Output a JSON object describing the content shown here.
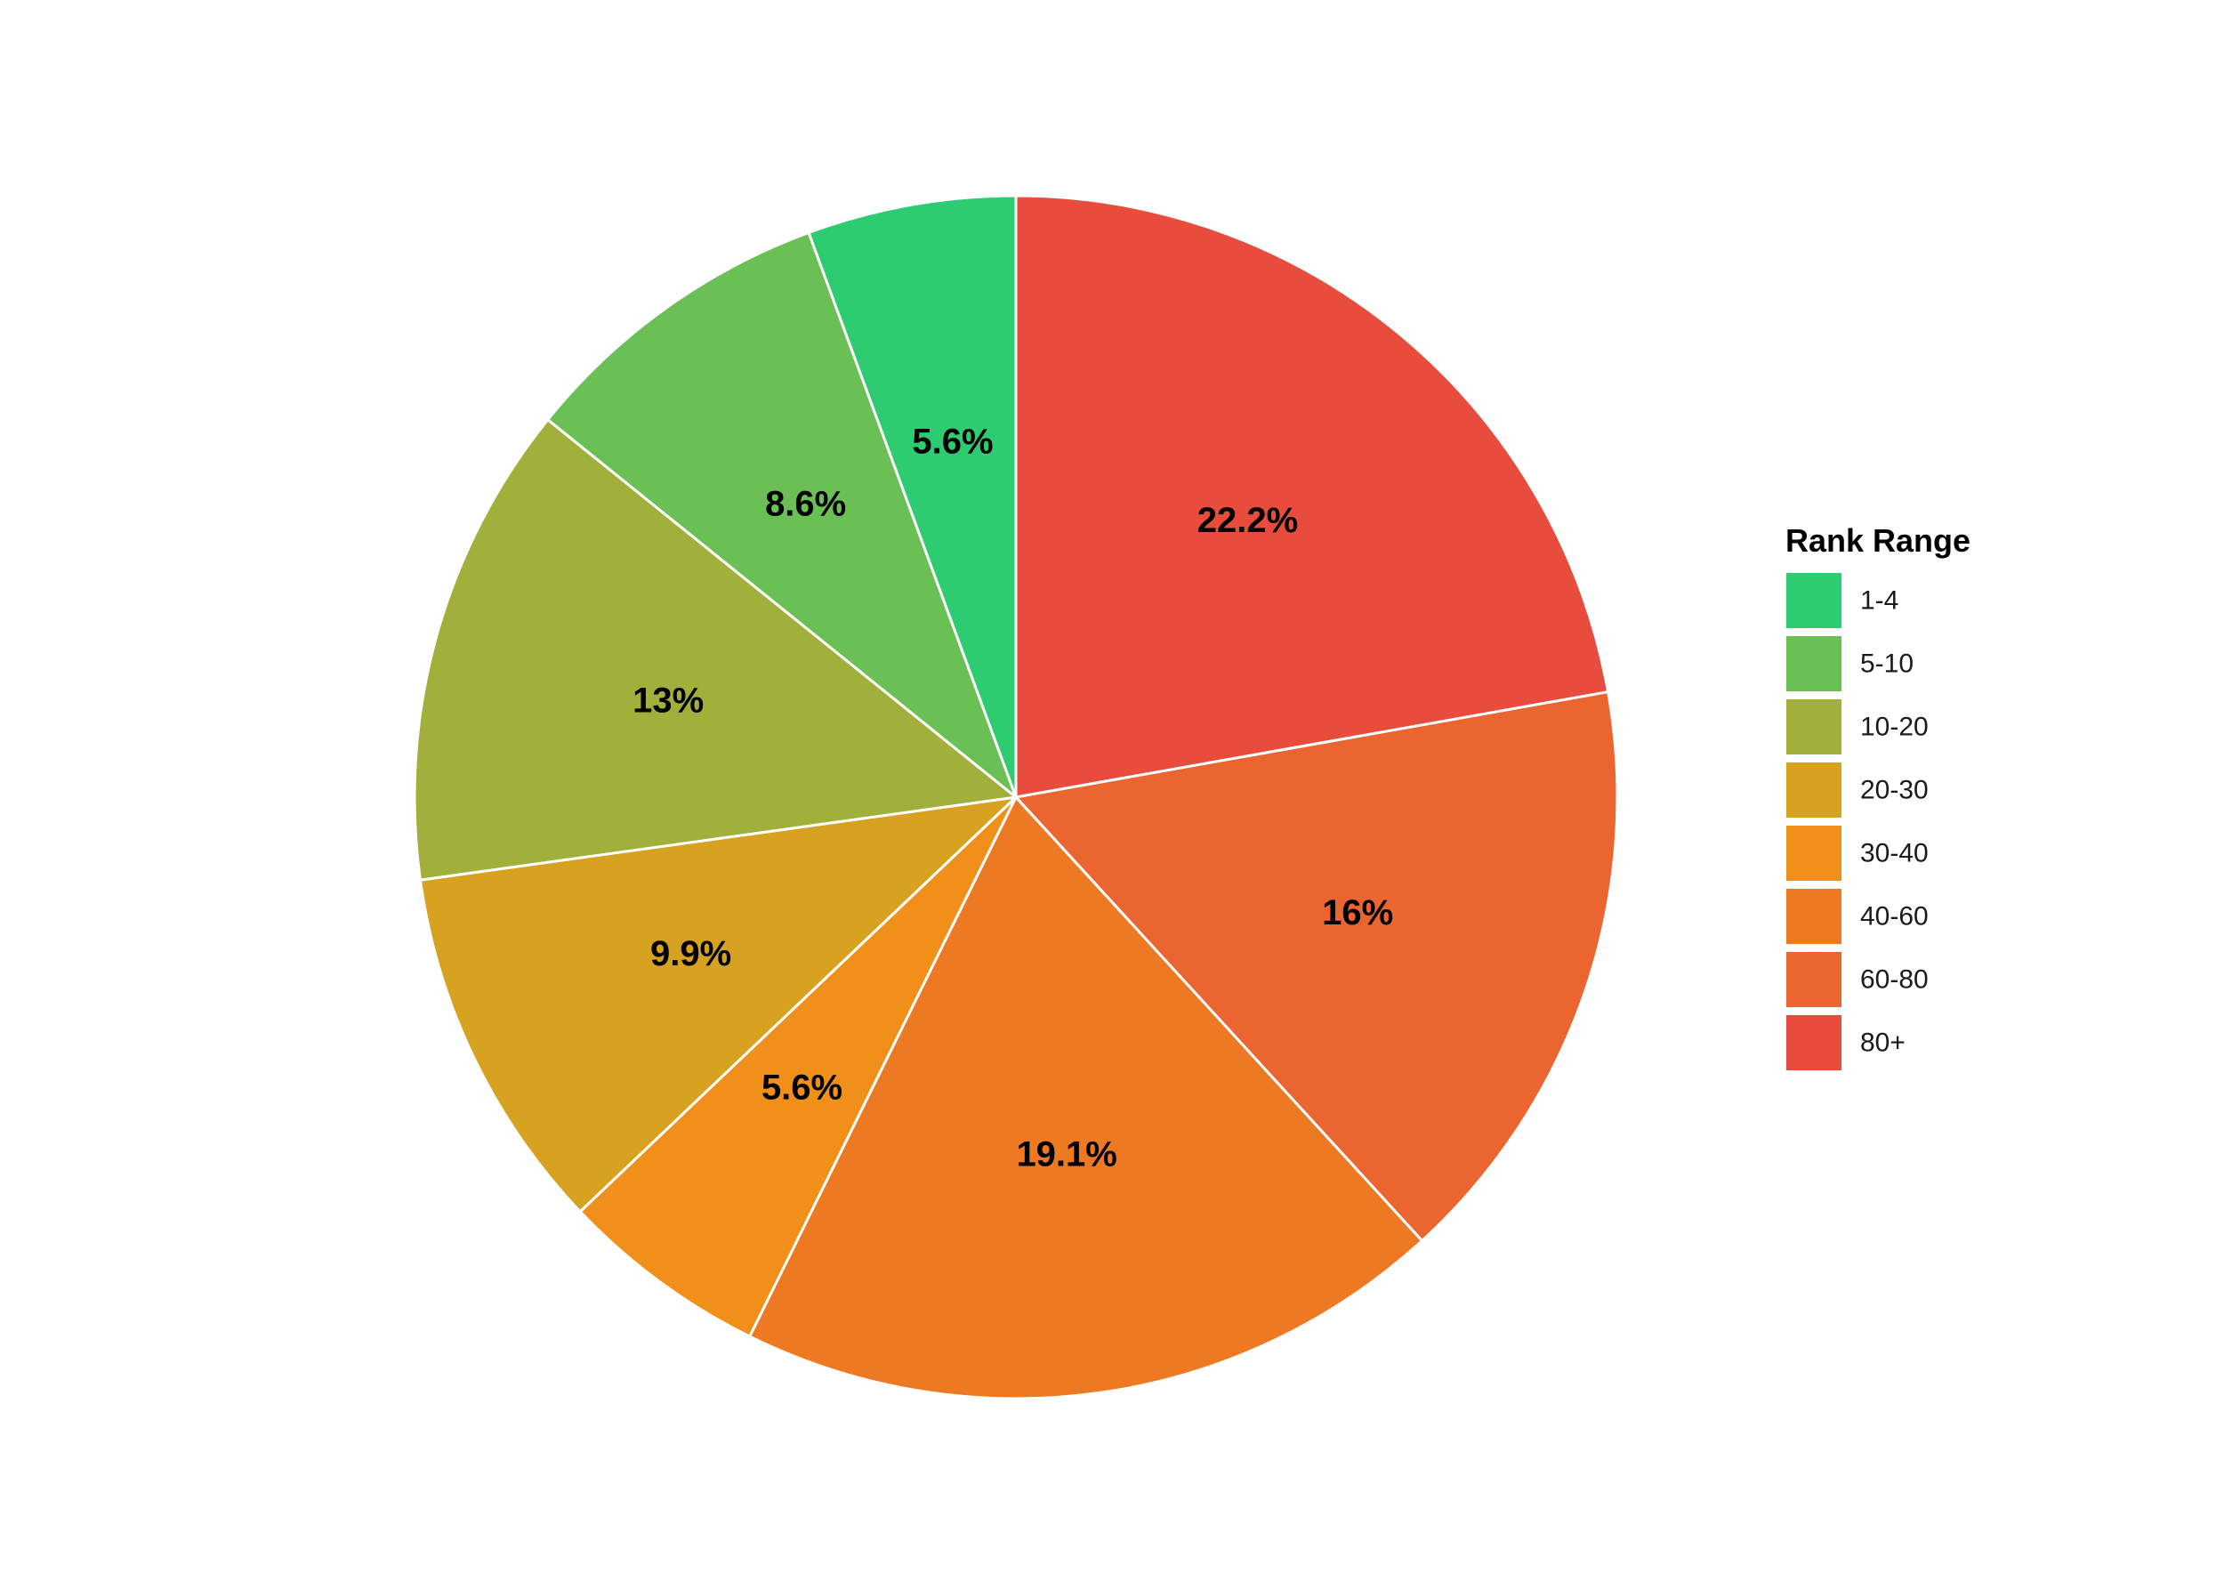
{
  "chart_data": {
    "type": "pie",
    "title": "",
    "legend_title": "Rank Range",
    "legend_position": "right",
    "start_angle": "12 o'clock",
    "direction": "clockwise-by-reverse-category",
    "categories": [
      "1-4",
      "5-10",
      "10-20",
      "20-30",
      "30-40",
      "40-60",
      "60-80",
      "80+"
    ],
    "values": [
      5.6,
      8.6,
      13.0,
      9.9,
      5.6,
      19.1,
      16.0,
      22.2
    ],
    "labels": [
      "5.6%",
      "8.6%",
      "13%",
      "9.9%",
      "5.6%",
      "19.1%",
      "16%",
      "22.2%"
    ],
    "colors": [
      "#2ecc71",
      "#6abf55",
      "#a0b03b",
      "#d6a220",
      "#f08f1a",
      "#ed7a23",
      "#ea6530",
      "#e74c3c"
    ],
    "slice_border_color": "#ffffff"
  }
}
